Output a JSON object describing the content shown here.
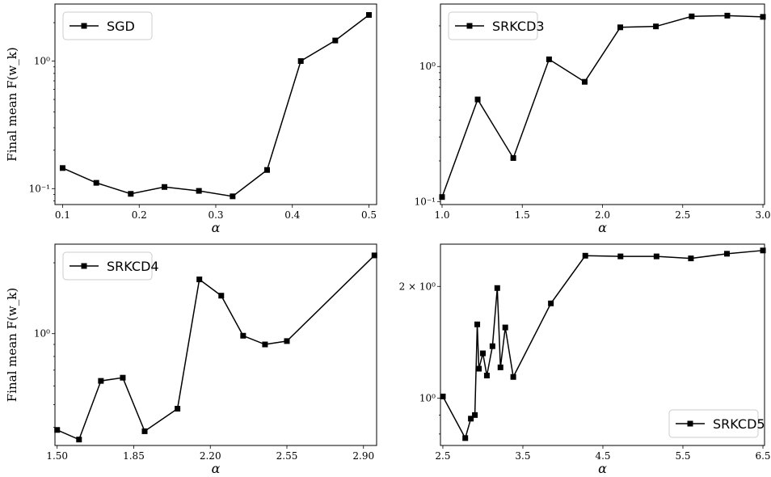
{
  "chart_data": [
    {
      "type": "line",
      "series": [
        {
          "name": "SGD",
          "x": [
            0.1,
            0.144,
            0.189,
            0.233,
            0.278,
            0.322,
            0.367,
            0.411,
            0.456,
            0.5
          ],
          "y": [
            0.145,
            0.111,
            0.091,
            0.103,
            0.096,
            0.087,
            0.14,
            1.0,
            1.45,
            2.3
          ]
        }
      ],
      "xlabel": "α",
      "ylabel": "Final mean F(w_k)",
      "yscale": "log",
      "xlim": [
        0.09,
        0.51
      ],
      "ylim": [
        0.075,
        2.8
      ],
      "xticks": [
        0.1,
        0.2,
        0.3,
        0.4,
        0.5
      ],
      "xtick_labels": [
        "0.1",
        "0.2",
        "0.3",
        "0.4",
        "0.5"
      ],
      "yticks": [
        0.1,
        1.0
      ],
      "ytick_labels": [
        "10⁻¹",
        "10⁰"
      ],
      "legend": "top-left"
    },
    {
      "type": "line",
      "series": [
        {
          "name": "SRKCD3",
          "x": [
            1.0,
            1.222,
            1.444,
            1.667,
            1.889,
            2.111,
            2.333,
            2.556,
            2.778,
            3.0
          ],
          "y": [
            0.108,
            0.57,
            0.21,
            1.13,
            0.77,
            1.95,
            1.98,
            2.35,
            2.38,
            2.33
          ]
        }
      ],
      "xlabel": "α",
      "ylabel": "",
      "yscale": "log",
      "xlim": [
        0.99,
        3.01
      ],
      "ylim": [
        0.095,
        2.9
      ],
      "xticks": [
        1.0,
        1.5,
        2.0,
        2.5,
        3.0
      ],
      "xtick_labels": [
        "1.0",
        "1.5",
        "2.0",
        "2.5",
        "3.0"
      ],
      "yticks": [
        0.1,
        1.0
      ],
      "ytick_labels": [
        "10⁻¹",
        "10⁰"
      ],
      "legend": "top-left"
    },
    {
      "type": "line",
      "series": [
        {
          "name": "SRKCD4",
          "x": [
            1.5,
            1.6,
            1.7,
            1.8,
            1.9,
            2.05,
            2.15,
            2.25,
            2.35,
            2.45,
            2.55,
            2.95
          ],
          "y": [
            0.39,
            0.355,
            0.63,
            0.65,
            0.385,
            0.48,
            1.7,
            1.45,
            0.98,
            0.9,
            0.93,
            2.15
          ]
        }
      ],
      "xlabel": "α",
      "ylabel": "Final mean F(w_k)",
      "yscale": "log",
      "xlim": [
        1.49,
        2.96
      ],
      "ylim": [
        0.335,
        2.4
      ],
      "xticks": [
        1.5,
        1.85,
        2.2,
        2.55,
        2.9
      ],
      "xtick_labels": [
        "1.50",
        "1.85",
        "2.20",
        "2.55",
        "2.90"
      ],
      "yticks": [
        1.0
      ],
      "ytick_labels": [
        "10⁰"
      ],
      "legend": "top-left"
    },
    {
      "type": "line",
      "series": [
        {
          "name": "SRKCD5",
          "x": [
            2.5,
            2.78,
            2.85,
            2.9,
            2.93,
            2.95,
            3.0,
            3.05,
            3.12,
            3.18,
            3.22,
            3.28,
            3.38,
            3.85,
            4.28,
            4.72,
            5.17,
            5.6,
            6.05,
            6.5
          ],
          "y": [
            1.01,
            0.78,
            0.88,
            0.9,
            1.58,
            1.2,
            1.32,
            1.15,
            1.38,
            1.98,
            1.21,
            1.55,
            1.14,
            1.8,
            2.42,
            2.41,
            2.41,
            2.38,
            2.45,
            2.5
          ]
        }
      ],
      "xlabel": "α",
      "ylabel": "",
      "yscale": "log",
      "xlim": [
        2.47,
        6.52
      ],
      "ylim": [
        0.745,
        2.6
      ],
      "xticks": [
        2.5,
        3.5,
        4.5,
        5.5,
        6.5
      ],
      "xtick_labels": [
        "2.5",
        "3.5",
        "4.5",
        "5.5",
        "6.5"
      ],
      "yticks": [
        1.0,
        2.0
      ],
      "ytick_labels": [
        "10⁰",
        "2 × 10⁰"
      ],
      "legend": "bottom-right"
    }
  ]
}
